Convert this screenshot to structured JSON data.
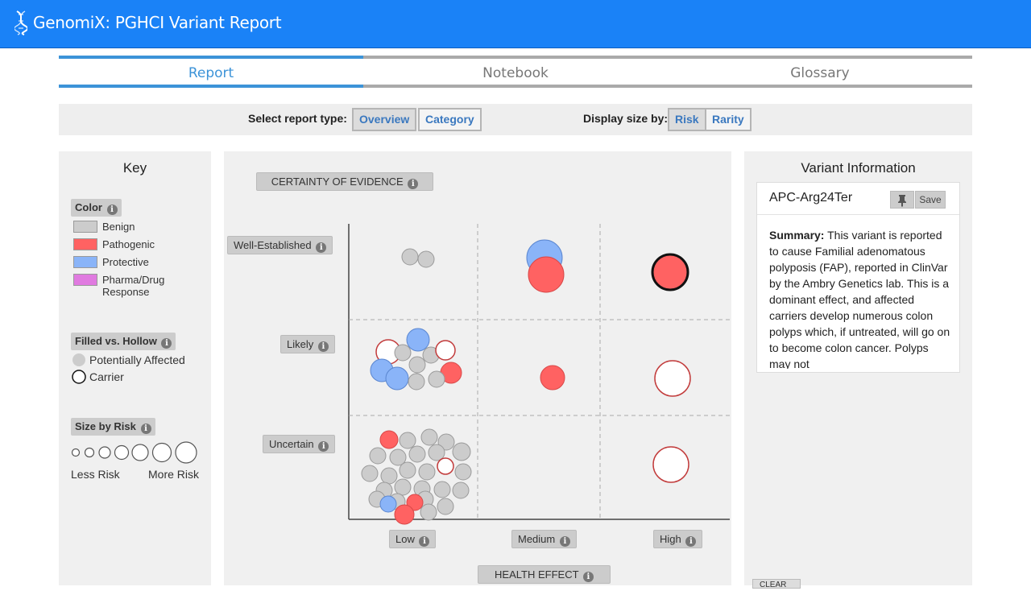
{
  "app": {
    "title": "GenomiX: PGHCI Variant Report",
    "logo_icon": "dna-icon"
  },
  "tabs": [
    {
      "label": "Report",
      "active": true
    },
    {
      "label": "Notebook",
      "active": false
    },
    {
      "label": "Glossary",
      "active": false
    }
  ],
  "toolbar": {
    "report_type_label": "Select report type:",
    "report_types": [
      {
        "label": "Overview",
        "active": true
      },
      {
        "label": "Category",
        "active": false
      }
    ],
    "display_size_label": "Display size by:",
    "size_options": [
      {
        "label": "Risk",
        "active": true
      },
      {
        "label": "Rarity",
        "active": false
      }
    ]
  },
  "key": {
    "title": "Key",
    "color_badge": "Color",
    "color_items": [
      {
        "label": "Benign",
        "color": "#cccccc"
      },
      {
        "label": "Pathogenic",
        "color": "#ff6262"
      },
      {
        "label": "Protective",
        "color": "#8ab4f8"
      },
      {
        "label": "Pharma/Drug",
        "label2": "Response",
        "color": "#e07ae0"
      }
    ],
    "fill_badge": "Filled vs. Hollow",
    "potentially_affected": "Potentially Affected",
    "carrier": "Carrier",
    "size_badge": "Size by Risk",
    "less_risk": "Less Risk",
    "more_risk": "More Risk"
  },
  "chart_data": {
    "type": "scatter",
    "y_axis_title": "CERTAINTY OF EVIDENCE",
    "x_axis_title": "HEALTH EFFECT",
    "y_categories": [
      "Uncertain",
      "Likely",
      "Well-Established"
    ],
    "x_categories": [
      "Low",
      "Medium",
      "High"
    ],
    "grid_lines": "dashed",
    "colors": {
      "benign": "#cccccc",
      "pathogenic": "#ff6262",
      "protective": "#8ab4f8"
    },
    "counts": {
      "Well-Established": {
        "Low": 2,
        "Medium": 2,
        "High": 1
      },
      "Likely": {
        "Low": 11,
        "Medium": 1,
        "High": 1
      },
      "Uncertain": {
        "Low": 30,
        "Medium": 0,
        "High": 1
      }
    }
  },
  "variant": {
    "title": "Variant Information",
    "name": "APC-Arg24Ter",
    "pin_icon": "pin-icon",
    "save_label": "Save",
    "summary_label": "Summary:",
    "summary_text": "This variant is reported to cause Familial adenomatous polyposis (FAP), reported in ClinVar by the Ambry Genetics lab. This is a dominant effect, and affected carriers develop numerous colon polyps which, if untreated, will go on to become colon cancer. Polyps may not",
    "clear_label": "CLEAR"
  }
}
